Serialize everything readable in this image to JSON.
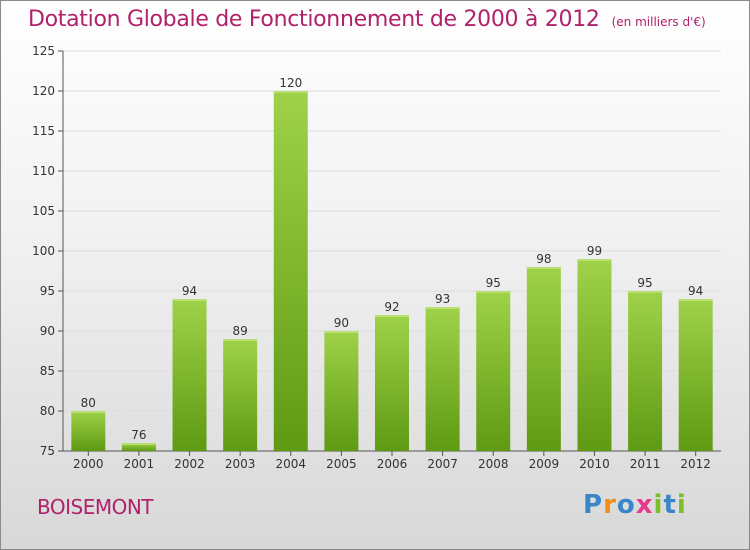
{
  "title": "Dotation Globale de Fonctionnement de 2000 à 2012",
  "subtitle": "(en milliers d'€)",
  "commune": "BOISEMONT",
  "logo": {
    "letters": [
      "P",
      "r",
      "o",
      "x",
      "i",
      "t",
      "i"
    ],
    "colors": [
      "#3a86c8",
      "#f28c1a",
      "#3a86c8",
      "#e63a8a",
      "#7bbf2a",
      "#3a86c8",
      "#7bbf2a"
    ]
  },
  "colors": {
    "title": "#b0226a",
    "bar_light": "#9fd24a",
    "bar_dark": "#5e9a12",
    "grid": "#dddddd"
  },
  "chart_data": {
    "type": "bar",
    "categories": [
      "2000",
      "2001",
      "2002",
      "2003",
      "2004",
      "2005",
      "2006",
      "2007",
      "2008",
      "2009",
      "2010",
      "2011",
      "2012"
    ],
    "values": [
      80,
      76,
      94,
      89,
      120,
      90,
      92,
      93,
      95,
      98,
      99,
      95,
      94
    ],
    "ylim": [
      75,
      125
    ],
    "yticks": [
      75,
      80,
      85,
      90,
      95,
      100,
      105,
      110,
      115,
      120,
      125
    ],
    "grid": true
  }
}
